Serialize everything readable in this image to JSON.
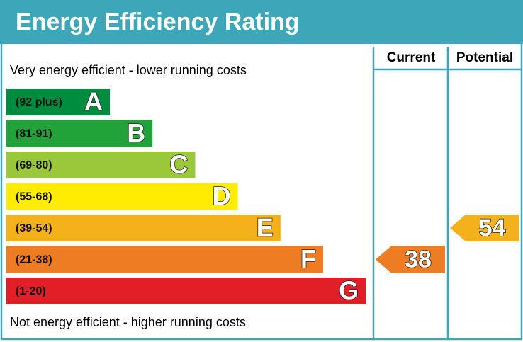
{
  "title": "Energy Efficiency Rating",
  "top_note": "Very energy efficient - lower running costs",
  "bottom_note": "Not energy efficient - higher running costs",
  "columns": [
    "Current",
    "Potential"
  ],
  "bands": [
    {
      "range": "(92 plus)",
      "letter": "A",
      "color": "#008c3f"
    },
    {
      "range": "(81-91)",
      "letter": "B",
      "color": "#22a33a"
    },
    {
      "range": "(69-80)",
      "letter": "C",
      "color": "#9bc83b"
    },
    {
      "range": "(55-68)",
      "letter": "D",
      "color": "#ffec00"
    },
    {
      "range": "(39-54)",
      "letter": "E",
      "color": "#f5b11b"
    },
    {
      "range": "(21-38)",
      "letter": "F",
      "color": "#ee7c23"
    },
    {
      "range": "(1-20)",
      "letter": "G",
      "color": "#e21f26"
    }
  ],
  "ratings": [
    "38",
    "54"
  ]
}
